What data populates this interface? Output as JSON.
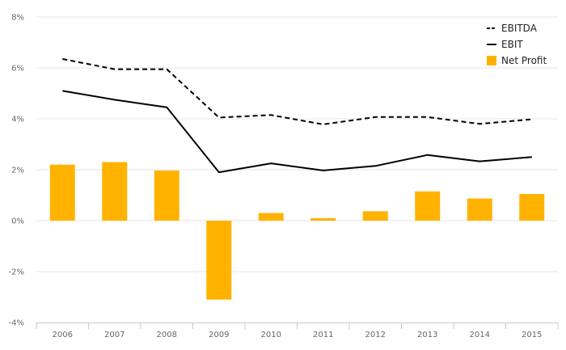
{
  "chart_data": {
    "type": "bar",
    "categories": [
      "2006",
      "2007",
      "2008",
      "2009",
      "2010",
      "2011",
      "2012",
      "2013",
      "2014",
      "2015"
    ],
    "ylim": [
      -4,
      8
    ],
    "ytick_values": [
      -4,
      -2,
      0,
      2,
      4,
      6,
      8
    ],
    "ytick_labels": [
      "-4%",
      "-2%",
      "0%",
      "2%",
      "4%",
      "6%",
      "8%"
    ],
    "grid": true,
    "legend_position": "top-right",
    "series": [
      {
        "name": "EBITDA",
        "kind": "line",
        "style": "dashed",
        "color": "#000000",
        "values": [
          6.35,
          5.95,
          5.95,
          4.05,
          4.15,
          3.78,
          4.07,
          4.07,
          3.8,
          3.98
        ]
      },
      {
        "name": "EBIT",
        "kind": "line",
        "style": "solid",
        "color": "#000000",
        "values": [
          5.1,
          4.75,
          4.45,
          1.9,
          2.25,
          1.97,
          2.15,
          2.58,
          2.33,
          2.5
        ]
      },
      {
        "name": "Net Profit",
        "kind": "bar",
        "color": "#FFB300",
        "values": [
          2.2,
          2.3,
          1.97,
          -3.1,
          0.3,
          0.1,
          0.37,
          1.15,
          0.87,
          1.05
        ]
      }
    ]
  }
}
